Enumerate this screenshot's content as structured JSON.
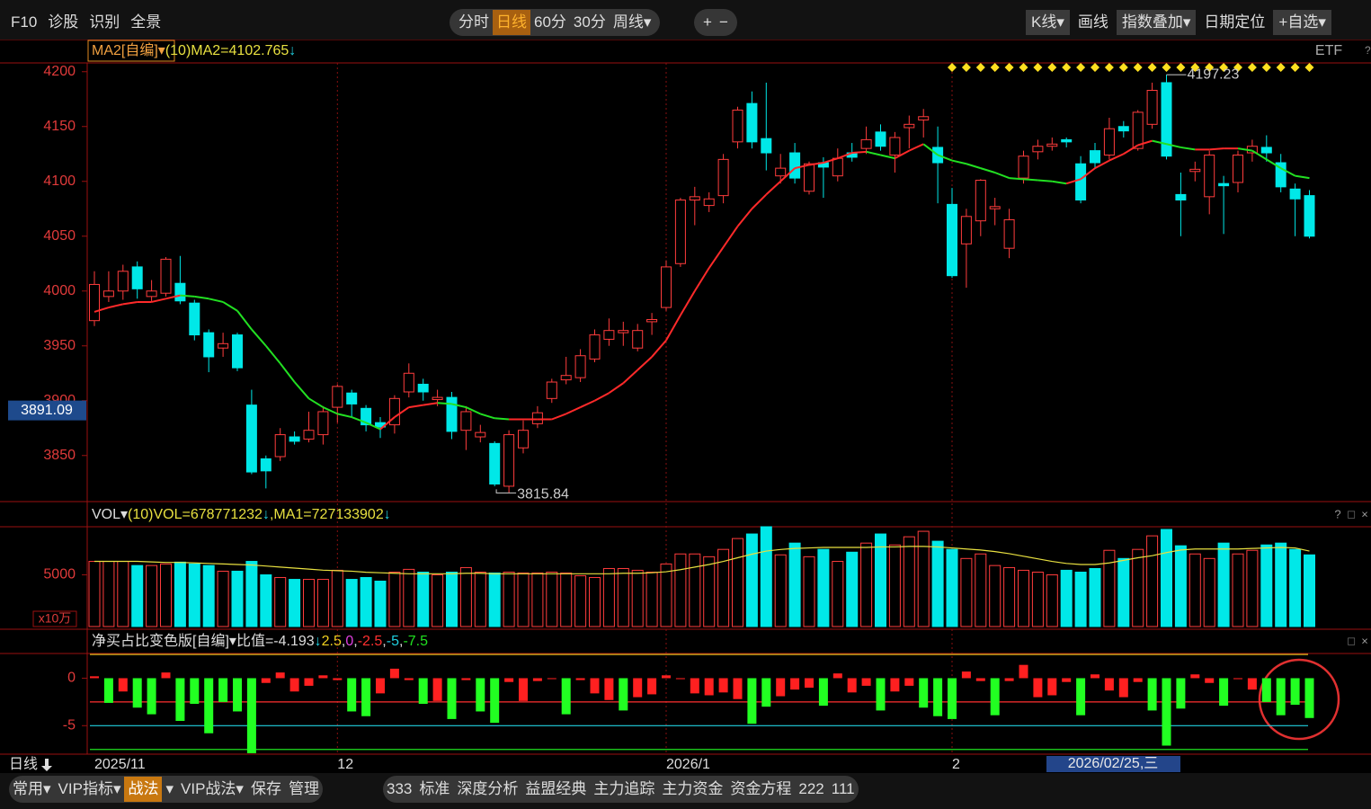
{
  "toolbar": {
    "left": [
      "F10",
      "诊股",
      "识别",
      "全景"
    ],
    "periods": [
      "分时",
      "日线",
      "60分",
      "30分",
      "周线▾"
    ],
    "selected": 1,
    "zoom": [
      "+",
      "−"
    ],
    "right": [
      "K线▾",
      "画线",
      "指数叠加▾",
      "日期定位",
      "+自选▾"
    ]
  },
  "chart_data": [
    {
      "type": "candlestick",
      "indicator": "MA2[自编]▾",
      "param": "(10)",
      "readout": "MA2=4102.765",
      "trend": "↓",
      "market": "ETF",
      "help": "?",
      "categories": [
        "2025/11",
        null,
        null,
        null,
        null,
        null,
        null,
        null,
        null,
        null,
        null,
        null,
        null,
        null,
        null,
        null,
        null,
        "12",
        null,
        null,
        null,
        null,
        null,
        null,
        null,
        null,
        null,
        null,
        null,
        null,
        null,
        null,
        null,
        null,
        null,
        null,
        null,
        null,
        null,
        null,
        "2026/1",
        null,
        null,
        null,
        null,
        null,
        null,
        null,
        null,
        null,
        null,
        null,
        null,
        null,
        null,
        null,
        null,
        null,
        null,
        null,
        "2",
        null,
        null,
        null,
        null,
        null,
        null,
        null,
        null,
        null,
        null,
        null,
        null,
        null,
        null,
        null,
        null,
        null,
        null,
        null,
        null,
        null,
        null,
        null,
        null,
        null
      ],
      "open": [
        3973,
        3995,
        4000,
        4022,
        3995,
        3998,
        4007,
        3989,
        3962,
        3948,
        3960,
        3896,
        3847,
        3849,
        3867,
        3865,
        3869,
        3894,
        3907,
        3893,
        3880,
        3878,
        3908,
        3915,
        3901,
        3903,
        3873,
        3867,
        3861,
        3822,
        3857,
        3879,
        3902,
        3919,
        3921,
        3938,
        3956,
        3962,
        3948,
        3972,
        3985,
        4025,
        4083,
        4078,
        4087,
        4136,
        4171,
        4139,
        4105,
        4126,
        4091,
        4117,
        4105,
        4126,
        4130,
        4145,
        4124,
        4149,
        4156,
        4131,
        4079,
        4043,
        4064,
        4075,
        4039,
        4103,
        4127,
        4132,
        4138,
        4116,
        4128,
        4124,
        4150,
        4130,
        4152,
        4190,
        4088,
        4109,
        4086,
        4098,
        4099,
        4126,
        4131,
        4117,
        4093,
        4087
      ],
      "high": [
        4018,
        4018,
        4024,
        4027,
        4010,
        4031,
        4032,
        3992,
        3965,
        3962,
        3962,
        3910,
        3850,
        3875,
        3872,
        3890,
        3895,
        3915,
        3910,
        3896,
        3885,
        3905,
        3934,
        3920,
        3910,
        3908,
        3895,
        3878,
        3863,
        3873,
        3882,
        3895,
        3920,
        3940,
        3947,
        3965,
        3975,
        3972,
        3970,
        3980,
        4028,
        4085,
        4095,
        4090,
        4125,
        4168,
        4182,
        4190,
        4125,
        4135,
        4118,
        4122,
        4130,
        4135,
        4150,
        4152,
        4145,
        4160,
        4166,
        4150,
        4094,
        4075,
        4102,
        4085,
        4075,
        4128,
        4138,
        4140,
        4140,
        4123,
        4135,
        4158,
        4155,
        4165,
        4190,
        4197.23,
        4108,
        4118,
        4128,
        4105,
        4128,
        4138,
        4142,
        4125,
        4098,
        4092
      ],
      "low": [
        3968,
        3990,
        3992,
        3993,
        3990,
        3995,
        3988,
        3955,
        3926,
        3940,
        3927,
        3833,
        3820,
        3845,
        3860,
        3862,
        3860,
        3880,
        3885,
        3872,
        3866,
        3870,
        3903,
        3900,
        3895,
        3865,
        3855,
        3862,
        3822,
        3815.84,
        3852,
        3875,
        3898,
        3915,
        3917,
        3935,
        3950,
        3950,
        3945,
        3960,
        3982,
        4022,
        4060,
        4072,
        4080,
        4130,
        4130,
        4110,
        4098,
        4098,
        4088,
        4085,
        4100,
        4118,
        4125,
        4128,
        4108,
        4130,
        4140,
        4080,
        4012,
        4003,
        4050,
        4060,
        4030,
        4098,
        4120,
        4128,
        4131,
        4080,
        4112,
        4120,
        4140,
        4128,
        4148,
        4120,
        4050,
        4100,
        4070,
        4052,
        4090,
        4118,
        4118,
        4090,
        4050,
        4048
      ],
      "close": [
        4006,
        4000,
        4018,
        4002,
        4000,
        4029,
        3991,
        3960,
        3940,
        3952,
        3930,
        3835,
        3836,
        3869,
        3863,
        3873,
        3890,
        3913,
        3897,
        3878,
        3876,
        3902,
        3925,
        3908,
        3903,
        3872,
        3890,
        3871,
        3824,
        3869,
        3873,
        3889,
        3917,
        3923,
        3941,
        3960,
        3964,
        3964,
        3964,
        3974,
        4022,
        4083,
        4086,
        4084,
        4120,
        4165,
        4136,
        4126,
        4112,
        4103,
        4116,
        4113,
        4121,
        4122,
        4138,
        4132,
        4140,
        4152,
        4159,
        4117,
        4014,
        4068,
        4101,
        4077,
        4065,
        4123,
        4132,
        4134,
        4136,
        4083,
        4117,
        4148,
        4146,
        4163,
        4183,
        4123,
        4083,
        4111,
        4124,
        4096,
        4124,
        4132,
        4126,
        4095,
        4084,
        4050
      ],
      "ma_values": [
        3981,
        3985,
        3988,
        3990,
        3990,
        3993,
        3996,
        3995,
        3993,
        3990,
        3982,
        3965,
        3950,
        3934,
        3917,
        3902,
        3894,
        3888,
        3885,
        3880,
        3874,
        3885,
        3894,
        3896,
        3898,
        3897,
        3894,
        3888,
        3884,
        3883,
        3883,
        3883,
        3883,
        3888,
        3894,
        3900,
        3907,
        3916,
        3928,
        3940,
        3955,
        3978,
        4000,
        4021,
        4040,
        4059,
        4075,
        4088,
        4100,
        4112,
        4115,
        4117,
        4121,
        4126,
        4127,
        4124,
        4121,
        4128,
        4134,
        4124,
        4119,
        4116,
        4112,
        4108,
        4103,
        4102,
        4101,
        4100,
        4098,
        4102,
        4112,
        4119,
        4125,
        4133,
        4137,
        4134,
        4131,
        4129,
        4129,
        4130,
        4130,
        4128,
        4120,
        4112,
        4105,
        4103
      ],
      "cursor_price": 3891.09,
      "ylim": [
        3808,
        4208
      ],
      "yticks": [
        4200,
        4150,
        4100,
        4050,
        4000,
        3950,
        3900,
        3850
      ],
      "grid": false,
      "up_color": "#ff3c3c",
      "down_color": "#00e8e8",
      "ma_up_color": "#ff2a2a",
      "ma_down_color": "#22e022"
    },
    {
      "type": "bar",
      "name": "VOL▾",
      "param": "(10)",
      "readouts": [
        {
          "text": "VOL=678771232",
          "trend": "↓"
        },
        {
          "text": ",MA1=727133902",
          "trend": "↓"
        }
      ],
      "controls": [
        "?",
        "□",
        "×"
      ],
      "unit": "x10万",
      "values": [
        6300,
        6300,
        6300,
        5900,
        5900,
        6050,
        6230,
        6050,
        5900,
        5350,
        5350,
        6300,
        5000,
        4740,
        4560,
        4560,
        4560,
        5440,
        4560,
        4740,
        4390,
        5260,
        5530,
        5260,
        5000,
        5260,
        5700,
        5260,
        5180,
        5260,
        5180,
        5180,
        5260,
        5180,
        4910,
        4740,
        5610,
        5610,
        5440,
        5260,
        6050,
        7020,
        7020,
        6750,
        7460,
        8510,
        8950,
        9650,
        6930,
        8070,
        6750,
        7460,
        6300,
        7190,
        8070,
        8950,
        7890,
        8680,
        9210,
        8250,
        7460,
        6580,
        7020,
        5900,
        5700,
        5440,
        5260,
        5000,
        5440,
        5260,
        5610,
        7370,
        6580,
        7460,
        8770,
        9390,
        7810,
        7020,
        6580,
        8070,
        7020,
        7370,
        7890,
        8070,
        7460,
        6930
      ],
      "ma_values": [
        6300,
        6300,
        6300,
        6300,
        6250,
        6200,
        6200,
        6150,
        6100,
        6050,
        6000,
        5950,
        5850,
        5750,
        5650,
        5550,
        5450,
        5400,
        5350,
        5250,
        5200,
        5150,
        5100,
        5100,
        5100,
        5100,
        5150,
        5150,
        5100,
        5100,
        5100,
        5100,
        5100,
        5100,
        5100,
        5100,
        5100,
        5150,
        5150,
        5200,
        5300,
        5500,
        5750,
        6000,
        6300,
        6650,
        7000,
        7300,
        7450,
        7550,
        7600,
        7650,
        7650,
        7650,
        7650,
        7700,
        7700,
        7750,
        7750,
        7700,
        7600,
        7500,
        7400,
        7250,
        7050,
        6800,
        6550,
        6300,
        6100,
        6000,
        6000,
        6150,
        6400,
        6650,
        6850,
        7150,
        7400,
        7500,
        7500,
        7500,
        7500,
        7550,
        7600,
        7650,
        7600,
        7300
      ],
      "ma_color": "#e8e040",
      "ylim": [
        0,
        9650
      ],
      "yticks": [
        5000
      ]
    },
    {
      "type": "bar",
      "title": "净买占比变色版[自编]▾",
      "readout": "比值=-4.193",
      "trend": "↓",
      "separator": ",",
      "controls": [
        "□",
        "×"
      ],
      "levels": [
        2.5,
        0,
        -2.5,
        -5,
        -7.5
      ],
      "level_colors": [
        "#f0d020",
        "#e040e0",
        "#ff3030",
        "#20d0e0",
        "#20e020"
      ],
      "values": [
        0.2,
        -2.6,
        -1.4,
        -3.1,
        -3.8,
        0.6,
        -4.5,
        -2.7,
        -5.8,
        -2.5,
        -3.5,
        -7.9,
        -0.5,
        0.6,
        -1.4,
        -0.8,
        0.3,
        -0.2,
        -3.5,
        -4.0,
        -1.6,
        1.0,
        -0.2,
        -2.7,
        -2.4,
        -4.3,
        -0.2,
        -3.5,
        -4.7,
        -0.4,
        -2.4,
        -0.3,
        0.0,
        -3.8,
        -0.2,
        -1.6,
        -2.3,
        -3.4,
        -2.0,
        -1.7,
        0.3,
        -0.1,
        -1.6,
        -1.8,
        -1.5,
        -2.2,
        -4.8,
        -3.0,
        -1.9,
        -1.2,
        -1.0,
        -2.9,
        0.5,
        -1.5,
        -0.8,
        -3.4,
        -1.4,
        -0.8,
        -3.1,
        -4.0,
        -4.3,
        0.7,
        -0.3,
        -3.9,
        -0.3,
        1.4,
        -2.0,
        -1.8,
        -0.4,
        -3.9,
        0.4,
        -1.3,
        -2.0,
        -0.4,
        -3.4,
        -7.1,
        -3.2,
        0.4,
        -0.5,
        -2.9,
        -0.1,
        -1.2,
        -2.5,
        -3.9,
        -2.8,
        -4.193
      ],
      "ylim": [
        -8,
        2.6
      ],
      "yticks": [
        0,
        -5
      ],
      "pos_color": "#ff2020",
      "neg_color": "#22ff22"
    }
  ],
  "date_axis": {
    "period": "日线",
    "cursor_date": "2026/02/25,三"
  },
  "bottom_toolbar": {
    "left": [
      "常用▾",
      "VIP指标▾",
      "战法",
      "▾",
      "VIP战法▾",
      "保存",
      "管理"
    ],
    "hot": 2,
    "right": [
      "333",
      "标准",
      "深度分析",
      "益盟经典",
      "主力追踪",
      "主力资金",
      "资金方程",
      "222",
      "111"
    ]
  }
}
